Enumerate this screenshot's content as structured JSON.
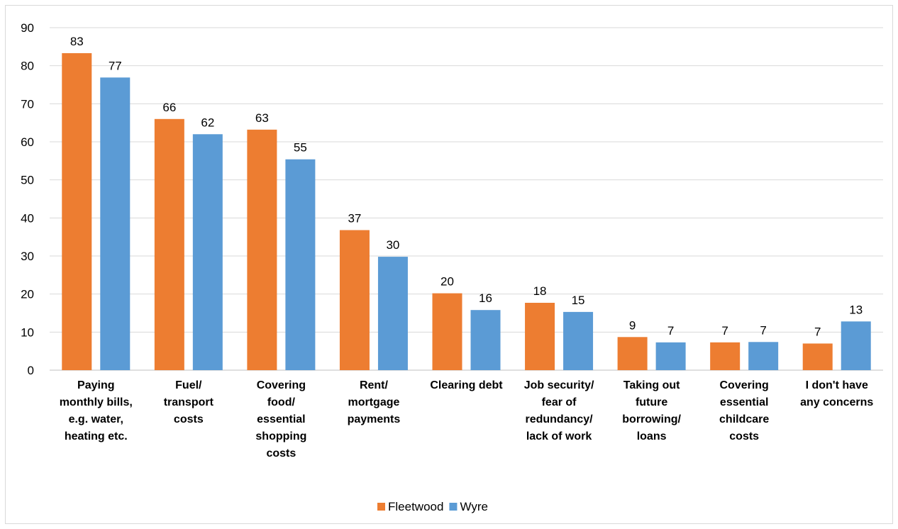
{
  "chart_data": {
    "type": "bar",
    "title": "",
    "xlabel": "",
    "ylabel": "",
    "ylim": [
      0,
      90
    ],
    "yticks": [
      0,
      10,
      20,
      30,
      40,
      50,
      60,
      70,
      80,
      90
    ],
    "grid": true,
    "legend_position": "bottom",
    "categories": [
      [
        "Paying",
        "monthly bills,",
        "e.g. water,",
        "heating etc."
      ],
      [
        "Fuel/",
        "transport",
        "costs"
      ],
      [
        "Covering",
        "food/",
        "essential",
        "shopping",
        "costs"
      ],
      [
        "Rent/",
        "mortgage",
        "payments"
      ],
      [
        "Clearing debt"
      ],
      [
        "Job security/",
        "fear of",
        "redundancy/",
        "lack of work"
      ],
      [
        "Taking out",
        "future",
        "borrowing/",
        "loans"
      ],
      [
        "Covering",
        "essential",
        "childcare",
        "costs"
      ],
      [
        "I don't have",
        "any concerns"
      ]
    ],
    "series": [
      {
        "name": "Fleetwood",
        "color": "#ED7D31",
        "values": [
          83.3,
          66,
          63.2,
          36.8,
          20.2,
          17.7,
          8.7,
          7.3,
          7
        ],
        "labels": [
          "83",
          "66",
          "63",
          "37",
          "20",
          "18",
          "9",
          "7",
          "7"
        ]
      },
      {
        "name": "Wyre",
        "color": "#5B9BD5",
        "values": [
          76.9,
          62,
          55.4,
          29.8,
          15.8,
          15.3,
          7.3,
          7.4,
          12.8
        ],
        "labels": [
          "77",
          "62",
          "55",
          "30",
          "16",
          "15",
          "7",
          "7",
          "13"
        ]
      }
    ]
  }
}
